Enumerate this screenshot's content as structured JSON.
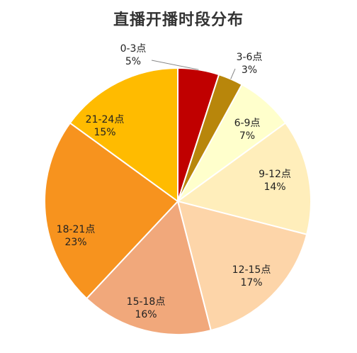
{
  "chart_data": {
    "type": "pie",
    "title": "直播开播时段分布",
    "slices": [
      {
        "label": "0-3点",
        "value": 5,
        "value_label": "5%",
        "color": "#c00000"
      },
      {
        "label": "3-6点",
        "value": 3,
        "value_label": "3%",
        "color": "#b8860b"
      },
      {
        "label": "6-9点",
        "value": 7,
        "value_label": "7%",
        "color": "#ffffcc"
      },
      {
        "label": "9-12点",
        "value": 14,
        "value_label": "14%",
        "color": "#ffeebb"
      },
      {
        "label": "12-15点",
        "value": 17,
        "value_label": "17%",
        "color": "#fdd5a9"
      },
      {
        "label": "15-18点",
        "value": 16,
        "value_label": "16%",
        "color": "#f1a87b"
      },
      {
        "label": "18-21点",
        "value": 23,
        "value_label": "23%",
        "color": "#f7931e"
      },
      {
        "label": "21-24点",
        "value": 15,
        "value_label": "15%",
        "color": "#ffbb00"
      }
    ]
  }
}
